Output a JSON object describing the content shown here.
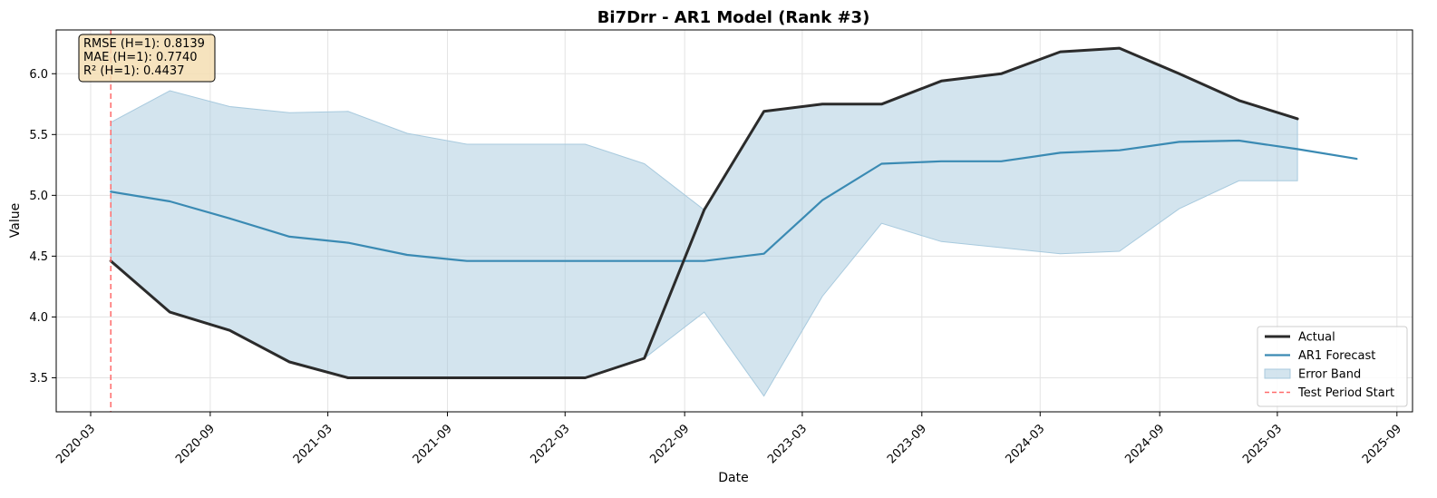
{
  "chart_data": {
    "type": "line",
    "title": "Bi7Drr - AR1 Model (Rank #3)",
    "xlabel": "Date",
    "ylabel": "Value",
    "x_ticks": [
      "2020-03",
      "2020-09",
      "2021-03",
      "2021-09",
      "2022-03",
      "2022-09",
      "2023-03",
      "2023-09",
      "2024-03",
      "2024-09",
      "2025-03",
      "2025-09"
    ],
    "y_ticks": [
      "3.5",
      "4.0",
      "4.5",
      "5.0",
      "5.5",
      "6.0"
    ],
    "xlim": [
      "2020-01-08",
      "2025-09-25"
    ],
    "ylim": [
      3.22,
      6.36
    ],
    "grid": true,
    "legend_position": "lower-right",
    "test_period_start": "2020-04-01",
    "series": [
      {
        "name": "Actual",
        "color": "#2b2b2b",
        "points": [
          [
            "2020-04-01",
            4.46
          ],
          [
            "2020-07-01",
            4.04
          ],
          [
            "2020-10-01",
            3.89
          ],
          [
            "2021-01-01",
            3.63
          ],
          [
            "2021-04-01",
            3.5
          ],
          [
            "2021-07-01",
            3.5
          ],
          [
            "2021-10-01",
            3.5
          ],
          [
            "2022-01-01",
            3.5
          ],
          [
            "2022-04-01",
            3.5
          ],
          [
            "2022-07-01",
            3.66
          ],
          [
            "2022-10-01",
            4.88
          ],
          [
            "2023-01-01",
            5.69
          ],
          [
            "2023-04-01",
            5.75
          ],
          [
            "2023-07-01",
            5.75
          ],
          [
            "2023-10-01",
            5.94
          ],
          [
            "2024-01-01",
            6.0
          ],
          [
            "2024-04-01",
            6.18
          ],
          [
            "2024-07-01",
            6.21
          ],
          [
            "2024-10-01",
            6.0
          ],
          [
            "2025-01-01",
            5.78
          ],
          [
            "2025-04-01",
            5.63
          ]
        ]
      },
      {
        "name": "AR1 Forecast",
        "color": "#3a8ab3",
        "points": [
          [
            "2020-04-01",
            5.03
          ],
          [
            "2020-07-01",
            4.95
          ],
          [
            "2020-10-01",
            4.81
          ],
          [
            "2021-01-01",
            4.66
          ],
          [
            "2021-04-01",
            4.61
          ],
          [
            "2021-07-01",
            4.51
          ],
          [
            "2021-10-01",
            4.46
          ],
          [
            "2022-01-01",
            4.46
          ],
          [
            "2022-04-01",
            4.46
          ],
          [
            "2022-07-01",
            4.46
          ],
          [
            "2022-10-01",
            4.46
          ],
          [
            "2023-01-01",
            4.52
          ],
          [
            "2023-04-01",
            4.96
          ],
          [
            "2023-07-01",
            5.26
          ],
          [
            "2023-10-01",
            5.28
          ],
          [
            "2024-01-01",
            5.28
          ],
          [
            "2024-04-01",
            5.35
          ],
          [
            "2024-07-01",
            5.37
          ],
          [
            "2024-10-01",
            5.44
          ],
          [
            "2025-01-01",
            5.45
          ],
          [
            "2025-04-01",
            5.38
          ],
          [
            "2025-07-01",
            5.3
          ]
        ]
      }
    ],
    "error_band": {
      "name": "Error Band",
      "color": "#a8cade",
      "upper": [
        [
          "2020-04-01",
          5.6
        ],
        [
          "2020-07-01",
          5.86
        ],
        [
          "2020-10-01",
          5.73
        ],
        [
          "2021-01-01",
          5.68
        ],
        [
          "2021-04-01",
          5.69
        ],
        [
          "2021-07-01",
          5.51
        ],
        [
          "2021-10-01",
          5.42
        ],
        [
          "2022-01-01",
          5.42
        ],
        [
          "2022-04-01",
          5.42
        ],
        [
          "2022-07-01",
          5.26
        ],
        [
          "2022-10-01",
          4.88
        ],
        [
          "2023-01-01",
          5.69
        ],
        [
          "2023-04-01",
          5.75
        ],
        [
          "2023-07-01",
          5.75
        ],
        [
          "2023-10-01",
          5.94
        ],
        [
          "2024-01-01",
          6.0
        ],
        [
          "2024-04-01",
          6.18
        ],
        [
          "2024-07-01",
          6.21
        ],
        [
          "2024-10-01",
          6.0
        ],
        [
          "2025-01-01",
          5.78
        ],
        [
          "2025-04-01",
          5.63
        ]
      ],
      "lower": [
        [
          "2020-04-01",
          4.46
        ],
        [
          "2020-07-01",
          4.04
        ],
        [
          "2020-10-01",
          3.89
        ],
        [
          "2021-01-01",
          3.63
        ],
        [
          "2021-04-01",
          3.5
        ],
        [
          "2021-07-01",
          3.5
        ],
        [
          "2021-10-01",
          3.5
        ],
        [
          "2022-01-01",
          3.5
        ],
        [
          "2022-04-01",
          3.5
        ],
        [
          "2022-07-01",
          3.66
        ],
        [
          "2022-10-01",
          4.04
        ],
        [
          "2023-01-01",
          3.35
        ],
        [
          "2023-04-01",
          4.17
        ],
        [
          "2023-07-01",
          4.77
        ],
        [
          "2023-10-01",
          4.62
        ],
        [
          "2024-01-01",
          4.57
        ],
        [
          "2024-04-01",
          4.52
        ],
        [
          "2024-07-01",
          4.54
        ],
        [
          "2024-10-01",
          4.89
        ],
        [
          "2025-01-01",
          5.12
        ],
        [
          "2025-04-01",
          5.12
        ]
      ]
    },
    "test_line": {
      "name": "Test Period Start",
      "color": "#ff6b6b"
    },
    "metrics": [
      "RMSE (H=1): 0.8139",
      "MAE (H=1): 0.7740",
      "R² (H=1): 0.4437"
    ],
    "legend": [
      "Actual",
      "AR1 Forecast",
      "Error Band",
      "Test Period Start"
    ]
  }
}
